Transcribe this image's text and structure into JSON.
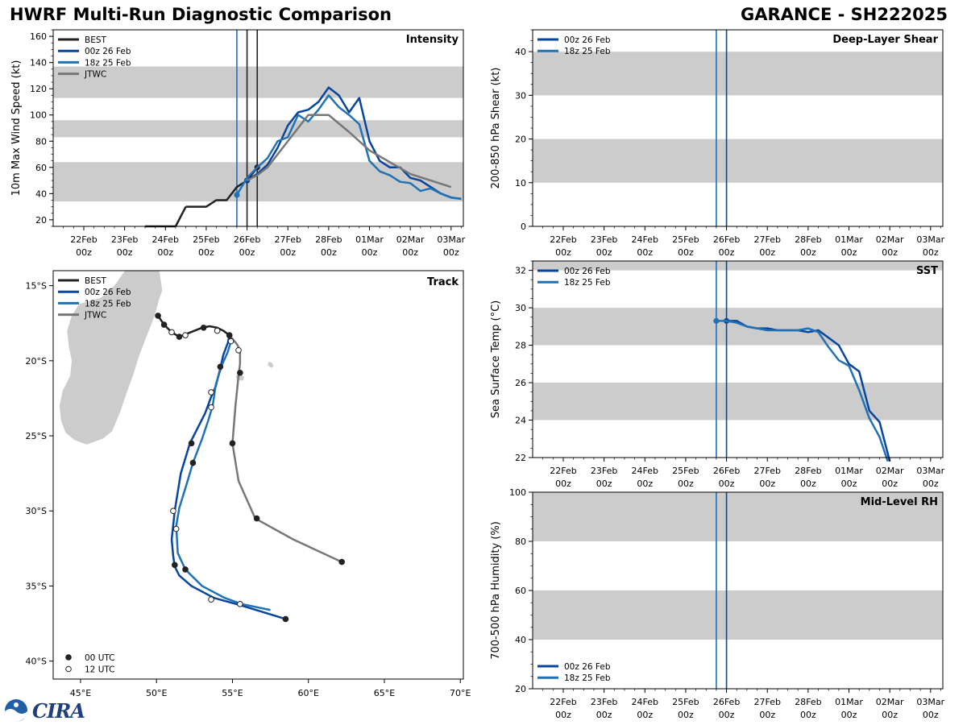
{
  "header": {
    "title_left": "HWRF Multi-Run Diagnostic Comparison",
    "title_right": "GARANCE - SH222025"
  },
  "logo": {
    "text": "CIRA",
    "emblem": "noaa-emblem-icon"
  },
  "colors": {
    "best": "#222222",
    "run_00z": "#08459c",
    "run_18z": "#2171b5",
    "jtwc": "#777777",
    "band": "#cccccc",
    "land": "#cccccc"
  },
  "time_axis": {
    "ticks_top": [
      "22Feb",
      "23Feb",
      "24Feb",
      "25Feb",
      "26Feb",
      "27Feb",
      "28Feb",
      "01Mar",
      "02Mar",
      "03Mar"
    ],
    "ticks_bottom": [
      "00z",
      "00z",
      "00z",
      "00z",
      "00z",
      "00z",
      "00z",
      "00z",
      "00z",
      "00z"
    ],
    "range_days": [
      -0.75,
      9.3
    ]
  },
  "chart_data": [
    {
      "id": "intensity",
      "type": "line",
      "title": "Intensity",
      "ylabel": "10m Max Wind Speed (kt)",
      "ylim": [
        15,
        165
      ],
      "yticks": [
        20,
        40,
        60,
        80,
        100,
        120,
        140,
        160
      ],
      "bands": [
        [
          34,
          64
        ],
        [
          83,
          96
        ],
        [
          113,
          137
        ]
      ],
      "vlines": [
        {
          "x": 3.75,
          "series": "run_18z"
        },
        {
          "x": 4.0,
          "series": "best"
        },
        {
          "x": 4.25,
          "series": "best"
        }
      ],
      "legend": [
        "BEST",
        "00z 26 Feb",
        "18z 25 Feb",
        "JTWC"
      ],
      "series": [
        {
          "name": "BEST",
          "key": "best",
          "width": 2.5,
          "x": [
            2.5,
            3.0,
            3.25,
            3.5,
            3.75,
            4.0,
            4.25
          ],
          "y": [
            30,
            30,
            35,
            35,
            45,
            50,
            60
          ],
          "x_pre": [
            1.5,
            1.75,
            2.0,
            2.25
          ],
          "y_pre": [
            15,
            15,
            15,
            15
          ],
          "markers": [
            {
              "x": 4.0,
              "y": 50
            },
            {
              "x": 4.25,
              "y": 60
            }
          ]
        },
        {
          "name": "00z 26 Feb",
          "key": "run_00z",
          "width": 2.5,
          "x": [
            4.0,
            4.25,
            4.5,
            4.75,
            5.0,
            5.25,
            5.5,
            5.75,
            6.0,
            6.25,
            6.5,
            6.75,
            7.0,
            7.25,
            7.5,
            7.75,
            8.0,
            8.25,
            8.5,
            8.75,
            9.0,
            9.25
          ],
          "y": [
            50,
            55,
            62,
            75,
            92,
            102,
            104,
            110,
            121,
            115,
            102,
            113,
            80,
            65,
            60,
            60,
            52,
            50,
            45,
            40,
            37,
            36
          ],
          "markers": [
            {
              "x": 4.0,
              "y": 50
            }
          ]
        },
        {
          "name": "18z 25 Feb",
          "key": "run_18z",
          "width": 2.5,
          "x": [
            3.75,
            4.0,
            4.25,
            4.5,
            4.75,
            5.0,
            5.25,
            5.5,
            5.75,
            6.0,
            6.25,
            6.5,
            6.75,
            7.0,
            7.25,
            7.5,
            7.75,
            8.0,
            8.25,
            8.5,
            8.75,
            9.0,
            9.25
          ],
          "y": [
            39,
            52,
            60,
            67,
            80,
            83,
            100,
            95,
            104,
            115,
            106,
            100,
            93,
            65,
            57,
            54,
            49,
            48,
            42,
            44,
            40,
            37,
            36
          ],
          "markers": [
            {
              "x": 3.75,
              "y": 39
            }
          ]
        },
        {
          "name": "JTWC",
          "key": "jtwc",
          "width": 2.5,
          "x": [
            4.0,
            4.25,
            4.5,
            5.0,
            5.5,
            6.0,
            6.5,
            7.0,
            8.0,
            9.0
          ],
          "y": [
            50,
            54,
            60,
            80,
            100,
            100,
            87,
            73,
            55,
            45
          ]
        }
      ]
    },
    {
      "id": "shear",
      "type": "line",
      "title": "Deep-Layer Shear",
      "ylabel": "200-850 hPa Shear (kt)",
      "ylim": [
        0,
        45
      ],
      "yticks": [
        0,
        10,
        20,
        30,
        40
      ],
      "bands": [
        [
          10,
          20
        ],
        [
          30,
          40
        ]
      ],
      "vlines": [
        {
          "x": 3.75,
          "series": "run_18z"
        },
        {
          "x": 4.0,
          "series": "run_00z"
        }
      ],
      "legend": [
        "00z 26 Feb",
        "18z 25 Feb"
      ],
      "series": []
    },
    {
      "id": "sst",
      "type": "line",
      "title": "SST",
      "ylabel": "Sea Surface Temp (°C)",
      "ylim": [
        22,
        32.5
      ],
      "yticks": [
        22,
        24,
        26,
        28,
        30,
        32
      ],
      "bands": [
        [
          24,
          26
        ],
        [
          28,
          30
        ],
        [
          32,
          32.5
        ]
      ],
      "vlines": [
        {
          "x": 3.75,
          "series": "run_18z"
        },
        {
          "x": 4.0,
          "series": "run_00z"
        }
      ],
      "legend": [
        "00z 26 Feb",
        "18z 25 Feb"
      ],
      "series": [
        {
          "name": "00z 26 Feb",
          "key": "run_00z",
          "width": 2.5,
          "x": [
            4.0,
            4.25,
            4.5,
            4.75,
            5.0,
            5.25,
            5.5,
            5.75,
            6.0,
            6.25,
            6.5,
            6.75,
            7.0,
            7.25,
            7.5,
            7.75,
            8.0
          ],
          "y": [
            29.3,
            29.3,
            29.0,
            28.9,
            28.9,
            28.8,
            28.8,
            28.8,
            28.7,
            28.8,
            28.4,
            28.0,
            27.0,
            26.6,
            24.5,
            23.9,
            21.8
          ],
          "markers": [
            {
              "x": 4.0,
              "y": 29.3
            }
          ]
        },
        {
          "name": "18z 25 Feb",
          "key": "run_18z",
          "width": 2.5,
          "x": [
            3.75,
            4.0,
            4.25,
            4.5,
            4.75,
            5.0,
            5.25,
            5.5,
            5.75,
            6.0,
            6.25,
            6.5,
            6.75,
            7.0,
            7.25,
            7.5,
            7.75,
            7.95
          ],
          "y": [
            29.3,
            29.3,
            29.2,
            29.0,
            28.9,
            28.8,
            28.8,
            28.8,
            28.8,
            28.9,
            28.7,
            27.9,
            27.2,
            26.9,
            25.6,
            24.1,
            23.1,
            21.8
          ],
          "markers": [
            {
              "x": 3.75,
              "y": 29.3
            }
          ]
        }
      ]
    },
    {
      "id": "rh",
      "type": "line",
      "title": "Mid-Level RH",
      "ylabel": "700-500 hPa Humidity (%)",
      "ylim": [
        20,
        100
      ],
      "yticks": [
        20,
        40,
        60,
        80,
        100
      ],
      "bands": [
        [
          40,
          60
        ],
        [
          80,
          100
        ]
      ],
      "vlines": [
        {
          "x": 3.75,
          "series": "run_18z"
        },
        {
          "x": 4.0,
          "series": "run_00z"
        }
      ],
      "legend": [
        "00z 26 Feb",
        "18z 25 Feb"
      ],
      "series": []
    },
    {
      "id": "track",
      "type": "scatter",
      "title": "Track",
      "xlim": [
        43.2,
        70.2
      ],
      "ylim": [
        -41.2,
        -14.0
      ],
      "xticks": [
        45,
        50,
        55,
        60,
        65,
        70
      ],
      "xtick_labels": [
        "45°E",
        "50°E",
        "55°E",
        "60°E",
        "65°E",
        "70°E"
      ],
      "yticks": [
        -15,
        -20,
        -25,
        -30,
        -35,
        -40
      ],
      "ytick_labels": [
        "15°S",
        "20°S",
        "25°S",
        "30°S",
        "35°S",
        "40°S"
      ],
      "legend": [
        "BEST",
        "00z 26 Feb",
        "18z 25 Feb",
        "JTWC"
      ],
      "marker_legend": [
        "00 UTC",
        "12 UTC"
      ],
      "land": {
        "madagascar": [
          [
            49.3,
            -12.0
          ],
          [
            50.2,
            -14.0
          ],
          [
            50.4,
            -15.3
          ],
          [
            50.2,
            -15.9
          ],
          [
            49.9,
            -17.0
          ],
          [
            49.4,
            -18.3
          ],
          [
            48.9,
            -19.6
          ],
          [
            48.5,
            -20.9
          ],
          [
            48.0,
            -22.3
          ],
          [
            47.6,
            -23.5
          ],
          [
            47.1,
            -24.7
          ],
          [
            46.5,
            -25.2
          ],
          [
            45.4,
            -25.6
          ],
          [
            44.6,
            -25.3
          ],
          [
            44.0,
            -24.8
          ],
          [
            43.7,
            -24.0
          ],
          [
            43.6,
            -23.0
          ],
          [
            43.8,
            -22.0
          ],
          [
            44.3,
            -21.0
          ],
          [
            44.4,
            -20.0
          ],
          [
            44.2,
            -19.0
          ],
          [
            44.1,
            -18.0
          ],
          [
            44.4,
            -17.0
          ],
          [
            44.9,
            -16.2
          ],
          [
            46.3,
            -15.8
          ],
          [
            47.2,
            -15.0
          ],
          [
            47.9,
            -14.0
          ],
          [
            48.7,
            -13.2
          ],
          [
            49.3,
            -12.0
          ]
        ],
        "mauritius": [
          [
            57.35,
            -20.05
          ],
          [
            57.6,
            -20.1
          ],
          [
            57.75,
            -20.35
          ],
          [
            57.55,
            -20.5
          ],
          [
            57.3,
            -20.3
          ],
          [
            57.35,
            -20.05
          ]
        ],
        "reunion": [
          [
            55.3,
            -20.9
          ],
          [
            55.6,
            -20.9
          ],
          [
            55.8,
            -21.1
          ],
          [
            55.7,
            -21.35
          ],
          [
            55.3,
            -21.3
          ],
          [
            55.2,
            -21.05
          ],
          [
            55.3,
            -20.9
          ]
        ]
      },
      "series": [
        {
          "name": "BEST",
          "key": "best",
          "width": 2.5,
          "lon": [
            50.1,
            50.5,
            51.0,
            51.5,
            52.0,
            52.5,
            53.0,
            53.5,
            54.0,
            54.4,
            54.8
          ],
          "lat": [
            -17.0,
            -17.6,
            -18.1,
            -18.4,
            -18.2,
            -18.0,
            -17.8,
            -17.7,
            -17.8,
            -18.0,
            -18.3
          ],
          "markers": [
            {
              "lon": 50.1,
              "lat": -17.0,
              "fill": true
            },
            {
              "lon": 50.5,
              "lat": -17.6,
              "fill": true
            },
            {
              "lon": 51.0,
              "lat": -18.1,
              "fill": false
            },
            {
              "lon": 51.5,
              "lat": -18.4,
              "fill": true
            },
            {
              "lon": 51.9,
              "lat": -18.3,
              "fill": false
            },
            {
              "lon": 53.1,
              "lat": -17.8,
              "fill": true
            },
            {
              "lon": 54.0,
              "lat": -18.0,
              "fill": false
            },
            {
              "lon": 54.8,
              "lat": -18.3,
              "fill": true
            }
          ]
        },
        {
          "name": "00z 26 Feb",
          "key": "run_00z",
          "width": 2.5,
          "lon": [
            54.8,
            54.7,
            54.4,
            54.2,
            53.9,
            53.6,
            53.2,
            52.7,
            52.2,
            51.6,
            51.2,
            51.0,
            51.1,
            51.2,
            51.5,
            52.3,
            53.8,
            55.6,
            58.5
          ],
          "lat": [
            -18.3,
            -18.8,
            -19.6,
            -20.5,
            -21.7,
            -22.4,
            -23.5,
            -24.5,
            -25.5,
            -27.5,
            -30.0,
            -31.9,
            -33.0,
            -33.7,
            -34.3,
            -35.0,
            -35.8,
            -36.3,
            -37.2
          ],
          "markers": [
            {
              "lon": 54.8,
              "lat": -18.3,
              "fill": true
            },
            {
              "lon": 54.2,
              "lat": -20.4,
              "fill": true
            },
            {
              "lon": 53.6,
              "lat": -22.1,
              "fill": false
            },
            {
              "lon": 52.3,
              "lat": -25.5,
              "fill": true
            },
            {
              "lon": 51.1,
              "lat": -30.0,
              "fill": false
            },
            {
              "lon": 51.2,
              "lat": -33.6,
              "fill": true
            },
            {
              "lon": 53.6,
              "lat": -35.9,
              "fill": false
            },
            {
              "lon": 58.5,
              "lat": -37.2,
              "fill": true
            }
          ]
        },
        {
          "name": "18z 25 Feb",
          "key": "run_18z",
          "width": 2.5,
          "lon": [
            54.9,
            54.7,
            54.3,
            53.9,
            53.7,
            53.4,
            53.0,
            52.4,
            51.9,
            51.5,
            51.3,
            51.4,
            51.9,
            53.0,
            54.5,
            55.6,
            57.5
          ],
          "lat": [
            -18.7,
            -19.4,
            -20.3,
            -21.6,
            -23.0,
            -24.0,
            -25.2,
            -26.8,
            -28.5,
            -29.8,
            -31.0,
            -32.8,
            -33.9,
            -35.0,
            -35.8,
            -36.2,
            -36.6
          ],
          "markers": [
            {
              "lon": 54.9,
              "lat": -18.7,
              "fill": false
            },
            {
              "lon": 53.6,
              "lat": -23.1,
              "fill": false
            },
            {
              "lon": 52.4,
              "lat": -26.8,
              "fill": true
            },
            {
              "lon": 51.3,
              "lat": -31.2,
              "fill": false
            },
            {
              "lon": 51.9,
              "lat": -33.9,
              "fill": true
            },
            {
              "lon": 55.5,
              "lat": -36.2,
              "fill": false
            }
          ]
        },
        {
          "name": "JTWC",
          "key": "jtwc",
          "width": 2.5,
          "lon": [
            54.8,
            55.3,
            55.5,
            55.5,
            55.4,
            55.2,
            55.0,
            55.4,
            56.5,
            59.0,
            62.2
          ],
          "lat": [
            -18.3,
            -18.9,
            -19.3,
            -20.2,
            -21.0,
            -23.0,
            -25.5,
            -28.0,
            -30.5,
            -31.9,
            -33.4
          ],
          "markers": [
            {
              "lon": 55.4,
              "lat": -19.3,
              "fill": false
            },
            {
              "lon": 55.5,
              "lat": -20.8,
              "fill": true
            },
            {
              "lon": 55.0,
              "lat": -25.5,
              "fill": true
            },
            {
              "lon": 56.6,
              "lat": -30.5,
              "fill": true
            },
            {
              "lon": 62.2,
              "lat": -33.4,
              "fill": true
            }
          ]
        }
      ]
    }
  ]
}
